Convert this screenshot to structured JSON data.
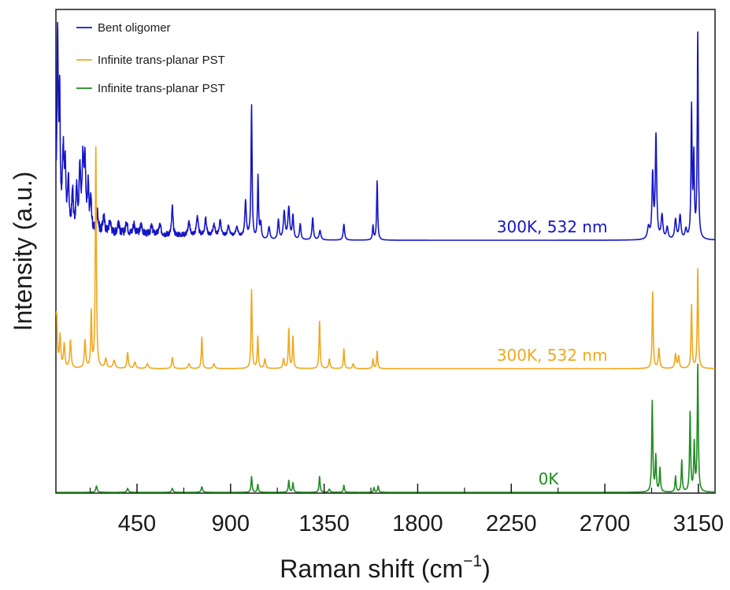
{
  "chart_data": {
    "type": "line",
    "xlabel": "Raman shift (cm",
    "xlabel_sup": "−1",
    "xlabel_end": ")",
    "ylabel": "Intensity (a.u.)",
    "xlim": [
      60,
      3230
    ],
    "x_ticks": [
      450,
      900,
      1350,
      1800,
      2250,
      2700,
      3150
    ],
    "x_minor_ticks": [
      225,
      675,
      1125,
      1575,
      2025,
      2475,
      2925
    ],
    "grid": false,
    "y_ticks": false,
    "legend": {
      "placement": "top-left",
      "entries": [
        {
          "label": "Bent oligomer",
          "color": "#1515c8"
        },
        {
          "label": "Infinite trans-planar PST",
          "color": "#f0a81e"
        },
        {
          "label": "Infinite trans-planar PST",
          "color": "#1f8c1f"
        }
      ]
    },
    "series": [
      {
        "color": "#1515c8",
        "annotation": "300K, 532 nm",
        "annotation_x": 2180,
        "baseline": 305,
        "noise": 14,
        "peaks": [
          [
            68,
            250,
            4
          ],
          [
            78,
            160,
            3
          ],
          [
            95,
            95,
            5
          ],
          [
            105,
            70,
            4
          ],
          [
            120,
            60,
            4
          ],
          [
            140,
            50,
            4
          ],
          [
            160,
            55,
            4
          ],
          [
            175,
            80,
            4
          ],
          [
            190,
            90,
            5
          ],
          [
            200,
            80,
            4
          ],
          [
            215,
            55,
            4
          ],
          [
            228,
            40,
            4
          ],
          [
            260,
            25,
            5
          ],
          [
            290,
            22,
            5
          ],
          [
            320,
            15,
            6
          ],
          [
            360,
            15,
            5
          ],
          [
            400,
            16,
            5
          ],
          [
            435,
            14,
            5
          ],
          [
            470,
            12,
            6
          ],
          [
            520,
            10,
            6
          ],
          [
            560,
            12,
            6
          ],
          [
            620,
            35,
            4
          ],
          [
            700,
            16,
            6
          ],
          [
            740,
            25,
            5
          ],
          [
            780,
            22,
            5
          ],
          [
            820,
            14,
            6
          ],
          [
            850,
            20,
            5
          ],
          [
            890,
            12,
            6
          ],
          [
            930,
            12,
            6
          ],
          [
            972,
            45,
            4
          ],
          [
            1001,
            170,
            3
          ],
          [
            1032,
            80,
            3
          ],
          [
            1045,
            20,
            4
          ],
          [
            1085,
            16,
            5
          ],
          [
            1130,
            25,
            4
          ],
          [
            1158,
            35,
            5
          ],
          [
            1180,
            40,
            5
          ],
          [
            1200,
            30,
            4
          ],
          [
            1235,
            20,
            4
          ],
          [
            1295,
            28,
            4
          ],
          [
            1330,
            12,
            5
          ],
          [
            1445,
            20,
            4
          ],
          [
            1585,
            18,
            3
          ],
          [
            1605,
            75,
            3
          ],
          [
            2910,
            15,
            6
          ],
          [
            2930,
            80,
            4
          ],
          [
            2946,
            130,
            4
          ],
          [
            2975,
            30,
            5
          ],
          [
            3000,
            15,
            5
          ],
          [
            3040,
            25,
            5
          ],
          [
            3062,
            30,
            5
          ],
          [
            3090,
            12,
            5
          ],
          [
            3117,
            165,
            3
          ],
          [
            3128,
            100,
            3
          ],
          [
            3147,
            260,
            3
          ]
        ]
      },
      {
        "color": "#f0a81e",
        "annotation": "300K, 532 nm",
        "annotation_x": 2180,
        "baseline": 468,
        "noise": 0,
        "peaks": [
          [
            63,
            70,
            4
          ],
          [
            80,
            40,
            4
          ],
          [
            100,
            30,
            4
          ],
          [
            130,
            35,
            4
          ],
          [
            200,
            35,
            4
          ],
          [
            230,
            70,
            3
          ],
          [
            252,
            280,
            3
          ],
          [
            300,
            12,
            5
          ],
          [
            340,
            10,
            6
          ],
          [
            405,
            20,
            4
          ],
          [
            440,
            8,
            5
          ],
          [
            500,
            6,
            6
          ],
          [
            620,
            14,
            4
          ],
          [
            700,
            6,
            5
          ],
          [
            762,
            40,
            3
          ],
          [
            820,
            6,
            5
          ],
          [
            1001,
            100,
            3
          ],
          [
            1031,
            40,
            3
          ],
          [
            1065,
            12,
            4
          ],
          [
            1155,
            12,
            4
          ],
          [
            1180,
            50,
            3
          ],
          [
            1200,
            40,
            3
          ],
          [
            1328,
            60,
            3
          ],
          [
            1375,
            12,
            4
          ],
          [
            1445,
            25,
            3
          ],
          [
            1490,
            6,
            4
          ],
          [
            1585,
            12,
            3
          ],
          [
            1605,
            22,
            3
          ],
          [
            2930,
            97,
            3
          ],
          [
            2960,
            25,
            4
          ],
          [
            3040,
            18,
            4
          ],
          [
            3055,
            15,
            4
          ],
          [
            3117,
            80,
            3
          ],
          [
            3147,
            126,
            3
          ]
        ]
      },
      {
        "color": "#1f8c1f",
        "annotation": "0K",
        "annotation_x": 2380,
        "baseline": 625,
        "noise": 0,
        "peaks": [
          [
            255,
            8,
            4
          ],
          [
            405,
            5,
            4
          ],
          [
            620,
            5,
            4
          ],
          [
            762,
            7,
            4
          ],
          [
            1001,
            20,
            3
          ],
          [
            1031,
            10,
            3
          ],
          [
            1180,
            15,
            3
          ],
          [
            1200,
            12,
            3
          ],
          [
            1328,
            20,
            3
          ],
          [
            1375,
            4,
            4
          ],
          [
            1445,
            9,
            3
          ],
          [
            1590,
            6,
            3
          ],
          [
            1610,
            8,
            3
          ],
          [
            2928,
            115,
            3
          ],
          [
            2945,
            45,
            3
          ],
          [
            2965,
            30,
            3
          ],
          [
            3040,
            20,
            3
          ],
          [
            3070,
            40,
            3
          ],
          [
            3110,
            100,
            3
          ],
          [
            3130,
            60,
            3
          ],
          [
            3147,
            160,
            3
          ]
        ]
      }
    ]
  }
}
